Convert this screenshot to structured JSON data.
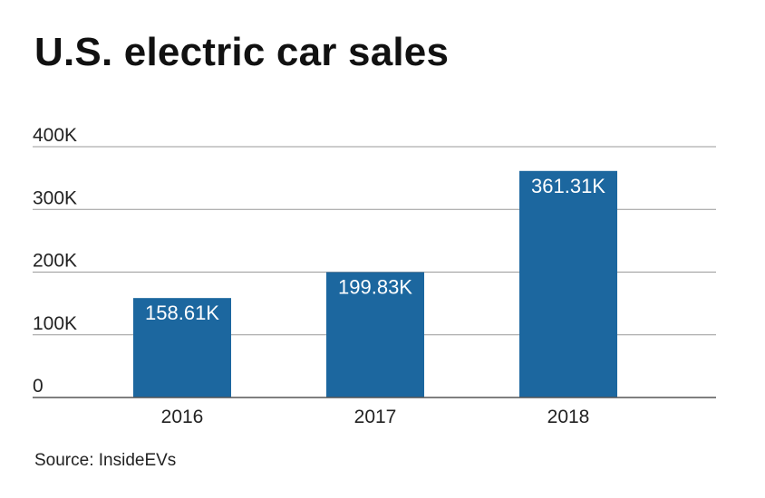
{
  "title": "U.S. electric car sales",
  "source": "Source: InsideEVs",
  "colors": {
    "bar": "#1c679f",
    "grid": "#9a9a9a",
    "axis": "#555555",
    "label_text": "#ffffff"
  },
  "chart_data": {
    "type": "bar",
    "title": "U.S. electric car sales",
    "categories": [
      "2016",
      "2017",
      "2018"
    ],
    "values": [
      158610,
      199830,
      361310
    ],
    "data_labels": [
      "158.61K",
      "199.83K",
      "361.31K"
    ],
    "xlabel": "",
    "ylabel": "",
    "ylim": [
      0,
      400000
    ],
    "yticks": [
      0,
      100000,
      200000,
      300000,
      400000
    ],
    "ytick_labels": [
      "0",
      "100K",
      "200K",
      "300K",
      "400K"
    ],
    "grid": true,
    "legend": "none"
  }
}
